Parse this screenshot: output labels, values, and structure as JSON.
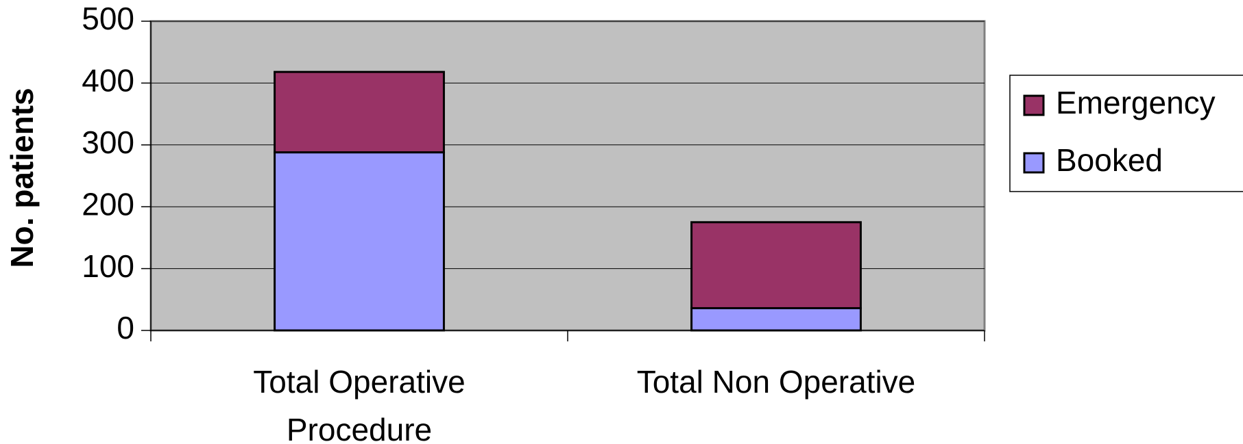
{
  "chart_data": {
    "type": "stacked_bar",
    "y_label": "No. patients",
    "categories": [
      "Total Operative Procedure",
      "Total Non Operative"
    ],
    "series": [
      {
        "name": "Booked",
        "color": "#9999ff",
        "values": [
          288,
          36
        ]
      },
      {
        "name": "Emergency",
        "color": "#993366",
        "values": [
          130,
          139
        ]
      }
    ],
    "ylim": [
      0,
      500
    ],
    "yticks": [
      0,
      100,
      200,
      300,
      400,
      500
    ],
    "grid": true,
    "legend": "right",
    "plot_background": "#c0c0c0"
  }
}
